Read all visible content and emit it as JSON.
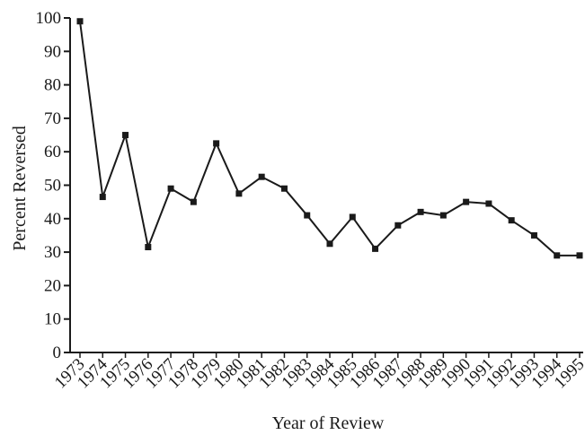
{
  "chart_data": {
    "type": "line",
    "title": "",
    "xlabel": "Year of Review",
    "ylabel": "Percent Reversed",
    "ylim": [
      0,
      100
    ],
    "yticks": [
      "0",
      "10",
      "20",
      "30",
      "40",
      "50",
      "60",
      "70",
      "80",
      "90",
      "100"
    ],
    "grid": false,
    "x": [
      "1973",
      "1974",
      "1975",
      "1976",
      "1977",
      "1978",
      "1979",
      "1980",
      "1981",
      "1982",
      "1983",
      "1984",
      "1985",
      "1986",
      "1987",
      "1988",
      "1989",
      "1990",
      "1991",
      "1992",
      "1993",
      "1994",
      "1995"
    ],
    "series": [
      {
        "values": [
          99,
          46.5,
          65,
          31.5,
          49,
          45,
          62.5,
          47.5,
          52.5,
          49,
          41,
          32.5,
          40.5,
          31,
          38,
          42,
          41,
          45,
          44.5,
          39.5,
          35,
          29,
          29
        ],
        "color": "#1a1a1a",
        "marker": "square"
      }
    ]
  }
}
